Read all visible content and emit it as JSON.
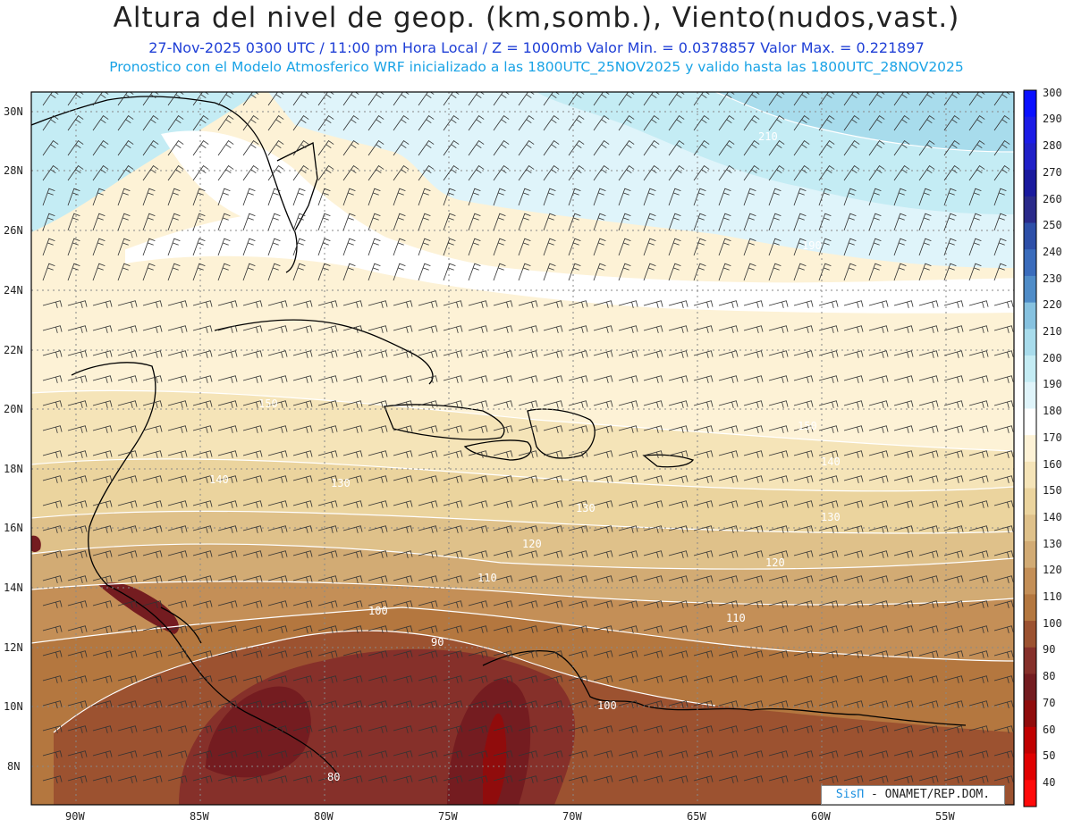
{
  "header": {
    "title": "Altura del nivel de geop. (km,somb.), Viento(nudos,vast.)",
    "subtitle": "27-Nov-2025 0300 UTC / 11:00 pm Hora Local / Z = 1000mb Valor Min. = 0.0378857  Valor Max. = 0.221897",
    "subtitle2": "Pronostico con el Modelo Atmosferico WRF inicializado a las 1800UTC_25NOV2025 y valido hasta las  1800UTC_28NOV2025"
  },
  "map": {
    "lat_labels": [
      "30N",
      "28N",
      "26N",
      "24N",
      "22N",
      "20N",
      "18N",
      "16N",
      "14N",
      "12N",
      "10N",
      "8N"
    ],
    "lon_labels": [
      "90W",
      "85W",
      "80W",
      "75W",
      "70W",
      "65W",
      "60W",
      "55W"
    ],
    "contour_labels": [
      "210",
      "190",
      "150",
      "140",
      "130",
      "140",
      "150",
      "130",
      "120",
      "130",
      "120",
      "110",
      "100",
      "110",
      "90",
      "100",
      "80",
      "110"
    ]
  },
  "colorbar": {
    "levels": [
      "300",
      "290",
      "280",
      "270",
      "260",
      "250",
      "240",
      "230",
      "220",
      "210",
      "200",
      "190",
      "180",
      "170",
      "160",
      "150",
      "140",
      "130",
      "120",
      "110",
      "100",
      "90",
      "80",
      "70",
      "60",
      "50",
      "40"
    ],
    "colors": [
      "#0a10ff",
      "#1c1ce6",
      "#2020c8",
      "#1a1a9e",
      "#2a2a8a",
      "#2d4fa8",
      "#3a6cbc",
      "#4f8cc8",
      "#86c2e0",
      "#a8dcec",
      "#c4ecf4",
      "#dff4fa",
      "#ffffff",
      "#fdf2d6",
      "#f5e4b8",
      "#ebd49e",
      "#dfc18a",
      "#d2ab74",
      "#c48f57",
      "#b4773f",
      "#9c5230",
      "#86302a",
      "#741c20",
      "#900c0c",
      "#c00000",
      "#e00000",
      "#ff0a0a"
    ]
  },
  "branding": {
    "sis": "SisΠ",
    "org": "- ONAMET/REP.DOM."
  }
}
